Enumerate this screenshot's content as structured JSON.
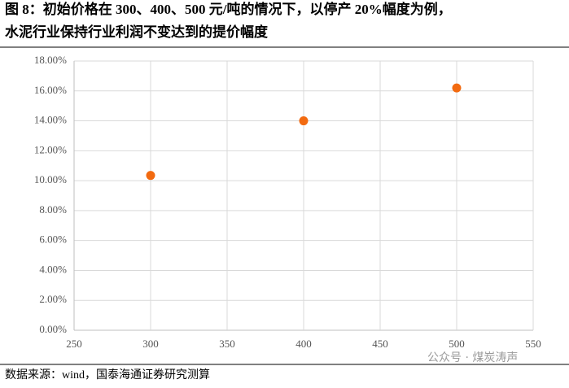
{
  "chart_data": {
    "type": "scatter",
    "title": [
      "图 8：初始价格在 300、400、500 元/吨的情况下，以停产 20%幅度为例，",
      "水泥行业保持行业利润不变达到的提价幅度"
    ],
    "x": [
      300,
      400,
      500
    ],
    "values": [
      10.35,
      14.0,
      16.2
    ],
    "color": "#f26a10",
    "xlim": [
      250,
      550
    ],
    "xticks": [
      250,
      300,
      350,
      400,
      450,
      500,
      550
    ],
    "ylim": [
      0,
      18
    ],
    "yticks": [
      {
        "value": 0,
        "label": "0.00%"
      },
      {
        "value": 2,
        "label": "2.00%"
      },
      {
        "value": 4,
        "label": "4.00%"
      },
      {
        "value": 6,
        "label": "6.00%"
      },
      {
        "value": 8,
        "label": "8.00%"
      },
      {
        "value": 10,
        "label": "10.00%"
      },
      {
        "value": 12,
        "label": "12.00%"
      },
      {
        "value": 14,
        "label": "14.00%"
      },
      {
        "value": 16,
        "label": "16.00%"
      },
      {
        "value": 18,
        "label": "18.00%"
      }
    ],
    "grid": true,
    "source": "数据来源：wind，国泰海通证券研究测算",
    "watermark": "公众号 · 煤炭涛声"
  }
}
